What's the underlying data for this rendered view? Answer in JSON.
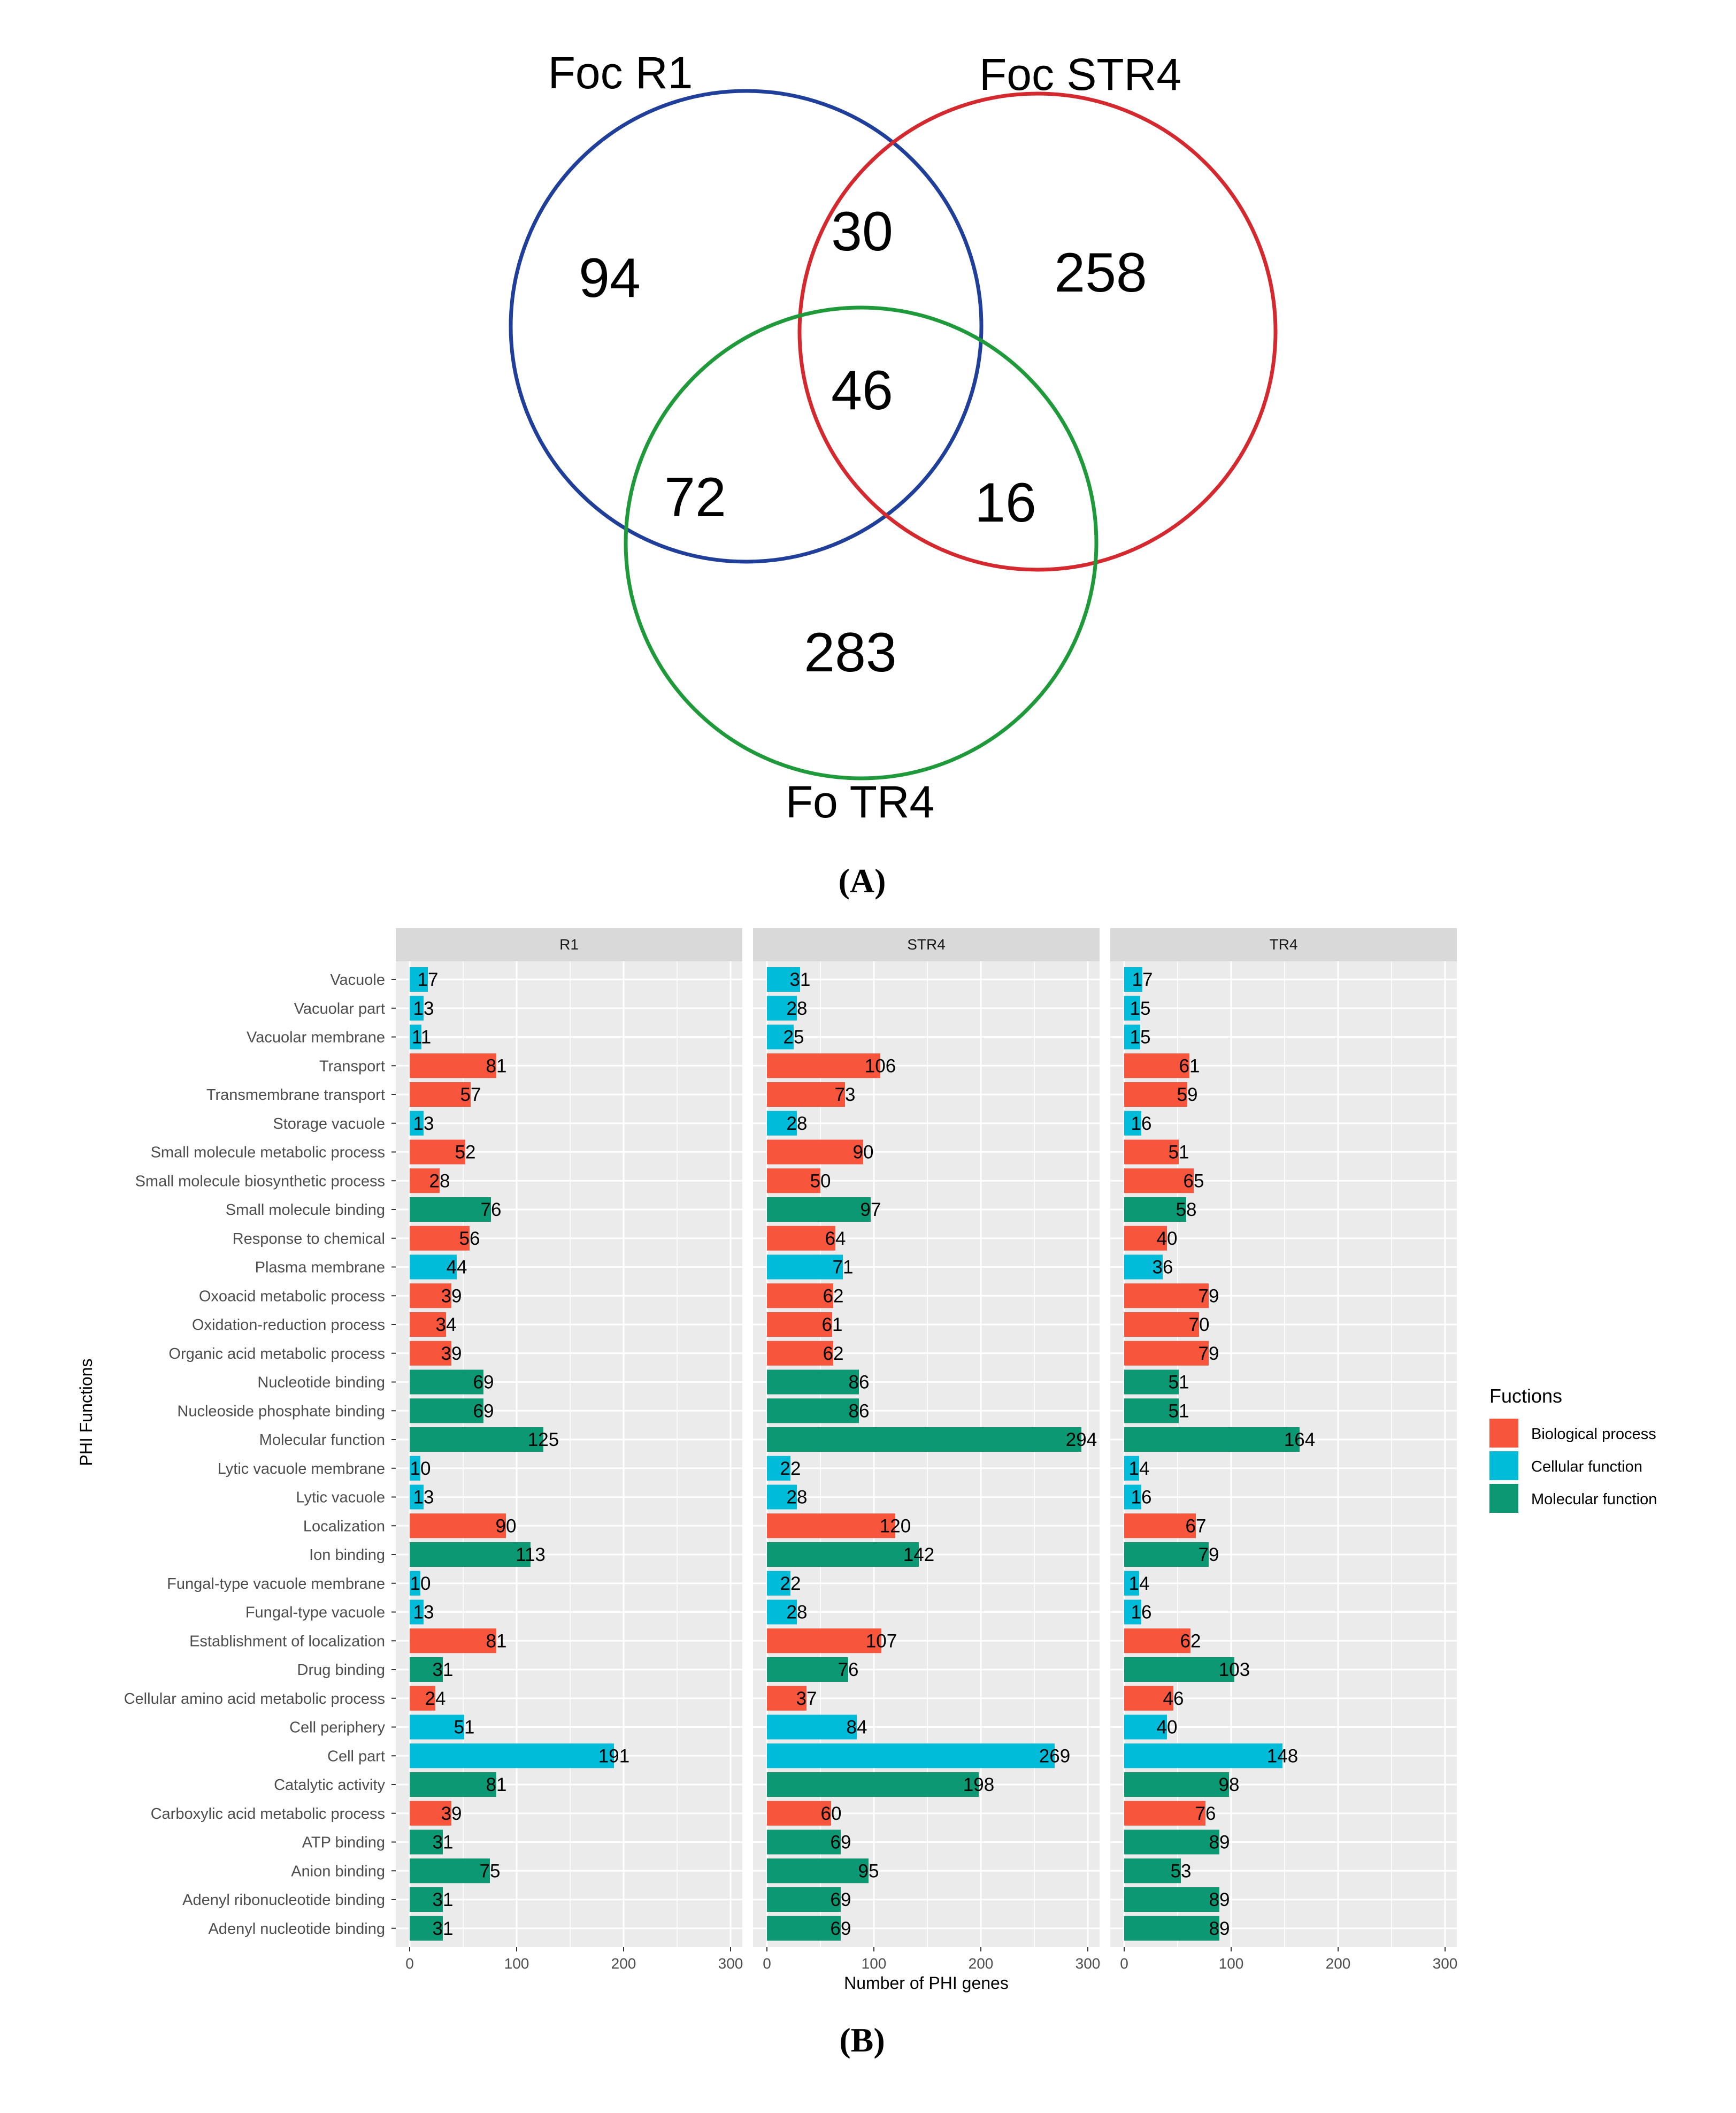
{
  "panel_a_label": "(A)",
  "panel_b_label": "(B)",
  "chart_data": [
    {
      "type": "venn",
      "sets": [
        {
          "name": "Foc R1",
          "color": "#1f3f9a"
        },
        {
          "name": "Foc STR4",
          "color": "#d42a2f"
        },
        {
          "name": "Fo TR4",
          "color": "#1f9a3a"
        }
      ],
      "regions": {
        "r1_only": 94,
        "str4_only": 258,
        "tr4_only": 283,
        "r1_str4": 30,
        "r1_tr4": 72,
        "str4_tr4": 16,
        "all": 46
      }
    },
    {
      "type": "bar",
      "orientation": "horizontal",
      "facets": [
        "R1",
        "STR4",
        "TR4"
      ],
      "xlabel": "Number of PHI genes",
      "ylabel": "PHI Functions",
      "xlim": [
        0,
        300
      ],
      "xticks": [
        0,
        100,
        200,
        300
      ],
      "legend_title": "Fuctions",
      "legend_position": "right",
      "groups": [
        {
          "name": "Biological process",
          "color": "#f8553d"
        },
        {
          "name": "Cellular function",
          "color": "#00bcd8"
        },
        {
          "name": "Molecular function",
          "color": "#0c9872"
        }
      ],
      "rows": [
        {
          "label": "Vacuole",
          "group": 1,
          "values": [
            17,
            31,
            17
          ]
        },
        {
          "label": "Vacuolar part",
          "group": 1,
          "values": [
            13,
            28,
            15
          ]
        },
        {
          "label": "Vacuolar membrane",
          "group": 1,
          "values": [
            11,
            25,
            15
          ]
        },
        {
          "label": "Transport",
          "group": 0,
          "values": [
            81,
            106,
            61
          ]
        },
        {
          "label": "Transmembrane transport",
          "group": 0,
          "values": [
            57,
            73,
            59
          ]
        },
        {
          "label": "Storage vacuole",
          "group": 1,
          "values": [
            13,
            28,
            16
          ]
        },
        {
          "label": "Small molecule metabolic process",
          "group": 0,
          "values": [
            52,
            90,
            51
          ]
        },
        {
          "label": "Small molecule biosynthetic process",
          "group": 0,
          "values": [
            28,
            50,
            65
          ]
        },
        {
          "label": "Small molecule binding",
          "group": 2,
          "values": [
            76,
            97,
            58
          ]
        },
        {
          "label": "Response to chemical",
          "group": 0,
          "values": [
            56,
            64,
            40
          ]
        },
        {
          "label": "Plasma membrane",
          "group": 1,
          "values": [
            44,
            71,
            36
          ]
        },
        {
          "label": "Oxoacid metabolic process",
          "group": 0,
          "values": [
            39,
            62,
            79
          ]
        },
        {
          "label": "Oxidation-reduction process",
          "group": 0,
          "values": [
            34,
            61,
            70
          ]
        },
        {
          "label": "Organic acid metabolic process",
          "group": 0,
          "values": [
            39,
            62,
            79
          ]
        },
        {
          "label": "Nucleotide binding",
          "group": 2,
          "values": [
            69,
            86,
            51
          ]
        },
        {
          "label": "Nucleoside phosphate binding",
          "group": 2,
          "values": [
            69,
            86,
            51
          ]
        },
        {
          "label": "Molecular function",
          "group": 2,
          "values": [
            125,
            294,
            164
          ]
        },
        {
          "label": "Lytic vacuole membrane",
          "group": 1,
          "values": [
            10,
            22,
            14
          ]
        },
        {
          "label": "Lytic vacuole",
          "group": 1,
          "values": [
            13,
            28,
            16
          ]
        },
        {
          "label": "Localization",
          "group": 0,
          "values": [
            90,
            120,
            67
          ]
        },
        {
          "label": "Ion binding",
          "group": 2,
          "values": [
            113,
            142,
            79
          ]
        },
        {
          "label": "Fungal-type vacuole membrane",
          "group": 1,
          "values": [
            10,
            22,
            14
          ]
        },
        {
          "label": "Fungal-type vacuole",
          "group": 1,
          "values": [
            13,
            28,
            16
          ]
        },
        {
          "label": "Establishment of localization",
          "group": 0,
          "values": [
            81,
            107,
            62
          ]
        },
        {
          "label": "Drug binding",
          "group": 2,
          "values": [
            31,
            76,
            103
          ]
        },
        {
          "label": "Cellular amino acid metabolic process",
          "group": 0,
          "values": [
            24,
            37,
            46
          ]
        },
        {
          "label": "Cell periphery",
          "group": 1,
          "values": [
            51,
            84,
            40
          ]
        },
        {
          "label": "Cell part",
          "group": 1,
          "values": [
            191,
            269,
            148
          ]
        },
        {
          "label": "Catalytic activity",
          "group": 2,
          "values": [
            81,
            198,
            98
          ]
        },
        {
          "label": "Carboxylic acid metabolic process",
          "group": 0,
          "values": [
            39,
            60,
            76
          ]
        },
        {
          "label": "ATP binding",
          "group": 2,
          "values": [
            31,
            69,
            89
          ]
        },
        {
          "label": "Anion binding",
          "group": 2,
          "values": [
            75,
            95,
            53
          ]
        },
        {
          "label": "Adenyl ribonucleotide binding",
          "group": 2,
          "values": [
            31,
            69,
            89
          ]
        },
        {
          "label": "Adenyl nucleotide binding",
          "group": 2,
          "values": [
            31,
            69,
            89
          ]
        }
      ]
    }
  ]
}
